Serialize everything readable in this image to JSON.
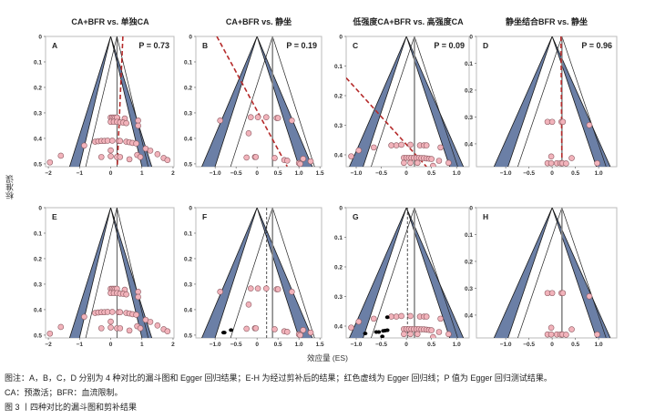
{
  "y_axis_label": "标准误",
  "x_axis_label": "效应量 (ES)",
  "caption": {
    "note_line1": "图注：A，B，C，D 分别为 4 种对比的漏斗图和 Egger 回归结果；E-H 为经过剪补后的结果；红色虚线为 Egger 回归线；P 值为 Egger 回归测试结果。",
    "note_line2": "CA：预激活；BFR：血流限制。",
    "figure_title": "图 3 丨四种对比的漏斗图和剪补结果"
  },
  "colors": {
    "funnel_fill": "#6b7fa6",
    "point_fill": "#f2b3bb",
    "point_stroke": "#8c5b62",
    "egger": "#b52a2a",
    "imputed": "#000000"
  },
  "chart_data": [
    {
      "type": "scatter",
      "panel": "A",
      "title": "CA+BFR vs. 单独CA",
      "p_text": "P = 0.73",
      "pooled": 0.2,
      "egger": [
        [
          0.39,
          0
        ],
        [
          0.21,
          0.51
        ]
      ],
      "xlim": [
        -2.09,
        2.03
      ],
      "ylim": [
        0,
        0.511
      ],
      "xticks": [
        -2,
        -1,
        0,
        1,
        2
      ],
      "xtick_labels": [
        "−2",
        "−1",
        "0",
        "1",
        "2"
      ],
      "yticks": [
        0,
        0.1,
        0.2,
        0.3,
        0.4,
        0.5
      ],
      "ytick_labels": [
        "0",
        "0.1",
        "0.2",
        "0.3",
        "0.4",
        "0.5"
      ],
      "points": [
        [
          0,
          0.318
        ],
        [
          0.05,
          0.318
        ],
        [
          0.1,
          0.318
        ],
        [
          0.15,
          0.318
        ],
        [
          0.2,
          0.318
        ],
        [
          0.45,
          0.322
        ],
        [
          0.88,
          0.33
        ],
        [
          0,
          0.335
        ],
        [
          0.1,
          0.335
        ],
        [
          0.2,
          0.335
        ],
        [
          0.3,
          0.337
        ],
        [
          0.4,
          0.338
        ],
        [
          0.5,
          0.34
        ],
        [
          0.88,
          0.35
        ],
        [
          -0.5,
          0.413
        ],
        [
          -0.4,
          0.411
        ],
        [
          -0.3,
          0.41
        ],
        [
          -0.2,
          0.41
        ],
        [
          -0.1,
          0.409
        ],
        [
          0.05,
          0.409
        ],
        [
          0.25,
          0.41
        ],
        [
          0.3,
          0.41
        ],
        [
          0.5,
          0.413
        ],
        [
          0.6,
          0.415
        ],
        [
          0.7,
          0.418
        ],
        [
          0.82,
          0.42
        ],
        [
          -0.85,
          0.428
        ],
        [
          1.12,
          0.44
        ],
        [
          1.27,
          0.448
        ],
        [
          1.5,
          0.462
        ],
        [
          0.85,
          0.465
        ],
        [
          0.95,
          0.473
        ],
        [
          1.7,
          0.477
        ],
        [
          -0.3,
          0.473
        ],
        [
          0.0,
          0.47
        ],
        [
          0.2,
          0.473
        ],
        [
          0.3,
          0.473
        ],
        [
          0.6,
          0.482
        ],
        [
          1.82,
          0.485
        ],
        [
          -1.6,
          0.468
        ],
        [
          -1.95,
          0.494
        ],
        [
          0.0,
          0.447
        ]
      ],
      "imputed": []
    },
    {
      "type": "scatter",
      "panel": "B",
      "title": "CA+BFR vs. 静坐",
      "p_text": "P = 0.19",
      "pooled": 0.37,
      "egger": [
        [
          -0.96,
          0
        ],
        [
          0.72,
          0.51
        ]
      ],
      "xlim": [
        -1.46,
        1.54
      ],
      "ylim": [
        0,
        0.511
      ],
      "xticks": [
        -1,
        -0.5,
        0,
        0.5,
        1,
        1.5
      ],
      "xtick_labels": [
        "−1.0",
        "−0.5",
        "0",
        "0.5",
        "1.0",
        "1.5"
      ],
      "yticks": [
        0,
        0.1,
        0.2,
        0.3,
        0.4,
        0.5
      ],
      "ytick_labels": [
        "0",
        "0.1",
        "0.2",
        "0.3",
        "0.4",
        "0.5"
      ],
      "points": [
        [
          -0.88,
          0.33
        ],
        [
          -0.15,
          0.317
        ],
        [
          0.02,
          0.317
        ],
        [
          0.22,
          0.317
        ],
        [
          0.47,
          0.32
        ],
        [
          0.5,
          0.32
        ],
        [
          0.83,
          0.33
        ],
        [
          -0.2,
          0.38
        ],
        [
          -0.25,
          0.475
        ],
        [
          -0.05,
          0.473
        ],
        [
          -0.03,
          0.473
        ],
        [
          0.42,
          0.477
        ],
        [
          0.65,
          0.485
        ],
        [
          0.72,
          0.487
        ],
        [
          1.0,
          0.497
        ],
        [
          1.03,
          0.5
        ],
        [
          1.1,
          0.48
        ],
        [
          1.28,
          0.49
        ]
      ],
      "imputed": []
    },
    {
      "type": "scatter",
      "panel": "C",
      "title": "低强度CA+BFR vs. 高强度CA",
      "p_text": "P = 0.09",
      "pooled": 0.16,
      "egger": [
        [
          -1.2,
          0.14
        ],
        [
          0.4,
          0.44
        ]
      ],
      "xlim": [
        -1.2,
        1.25
      ],
      "ylim": [
        0,
        0.44
      ],
      "xticks": [
        -1,
        -0.5,
        0,
        0.5,
        1
      ],
      "xtick_labels": [
        "−1.0",
        "−0.5",
        "0",
        "0.5",
        "1.0"
      ],
      "yticks": [
        0,
        0.1,
        0.2,
        0.3,
        0.4
      ],
      "ytick_labels": [
        "0",
        "0.1",
        "0.2",
        "0.3",
        "0.4"
      ],
      "points": [
        [
          -0.3,
          0.368
        ],
        [
          -0.2,
          0.368
        ],
        [
          -0.1,
          0.366
        ],
        [
          0.08,
          0.366
        ],
        [
          0.27,
          0.368
        ],
        [
          0.35,
          0.368
        ],
        [
          0.4,
          0.368
        ],
        [
          0.68,
          0.375
        ],
        [
          -0.65,
          0.375
        ],
        [
          -0.95,
          0.385
        ],
        [
          -1.1,
          0.405
        ],
        [
          -0.05,
          0.41
        ],
        [
          0,
          0.41
        ],
        [
          0.05,
          0.41
        ],
        [
          0.1,
          0.41
        ],
        [
          0.15,
          0.41
        ],
        [
          0.2,
          0.41
        ],
        [
          0.25,
          0.41
        ],
        [
          0.3,
          0.411
        ],
        [
          0.35,
          0.411
        ],
        [
          0.4,
          0.412
        ],
        [
          0.45,
          0.413
        ],
        [
          0.5,
          0.414
        ],
        [
          0.65,
          0.42
        ],
        [
          0.84,
          0.427
        ],
        [
          -0.05,
          0.427
        ],
        [
          0.08,
          0.427
        ],
        [
          0.22,
          0.427
        ],
        [
          0.53,
          0.437
        ]
      ],
      "imputed": []
    },
    {
      "type": "scatter",
      "panel": "D",
      "title": "静坐结合BFR vs. 静坐",
      "p_text": "P = 0.96",
      "pooled": 0.21,
      "egger": [
        [
          0.19,
          0
        ],
        [
          0.21,
          0.485
        ]
      ],
      "xlim": [
        -1.63,
        1.39
      ],
      "ylim": [
        0,
        0.485
      ],
      "xticks": [
        -1,
        -0.5,
        0,
        0.5,
        1
      ],
      "xtick_labels": [
        "−1.0",
        "−0.5",
        "0",
        "0.5",
        "1.0"
      ],
      "yticks": [
        0,
        0.1,
        0.2,
        0.3,
        0.4
      ],
      "ytick_labels": [
        "0",
        "0.1",
        "0.2",
        "0.3",
        "0.4"
      ],
      "points": [
        [
          -0.1,
          0.318
        ],
        [
          0,
          0.318
        ],
        [
          0.2,
          0.318
        ],
        [
          0.23,
          0.318
        ],
        [
          0.8,
          0.33
        ],
        [
          -0.02,
          0.447
        ],
        [
          0.42,
          0.453
        ],
        [
          -0.1,
          0.472
        ],
        [
          -0.02,
          0.472
        ],
        [
          0.1,
          0.472
        ],
        [
          0.18,
          0.472
        ],
        [
          0.22,
          0.472
        ],
        [
          0.3,
          0.473
        ],
        [
          0.97,
          0.472
        ]
      ],
      "imputed": []
    },
    {
      "type": "scatter",
      "panel": "E",
      "pooled": 0.2,
      "xlim": [
        -2.09,
        2.03
      ],
      "ylim": [
        0,
        0.511
      ],
      "xticks": [
        -2,
        -1,
        0,
        1,
        2
      ],
      "xtick_labels": [
        "−2",
        "−1",
        "0",
        "1",
        "2"
      ],
      "yticks": [
        0,
        0.1,
        0.2,
        0.3,
        0.4,
        0.5
      ],
      "ytick_labels": [
        "0",
        "0.1",
        "0.2",
        "0.3",
        "0.4",
        "0.5"
      ],
      "points": [
        [
          0,
          0.318
        ],
        [
          0.05,
          0.318
        ],
        [
          0.1,
          0.318
        ],
        [
          0.15,
          0.318
        ],
        [
          0.2,
          0.318
        ],
        [
          0.45,
          0.322
        ],
        [
          0.88,
          0.33
        ],
        [
          0,
          0.335
        ],
        [
          0.1,
          0.335
        ],
        [
          0.2,
          0.335
        ],
        [
          0.3,
          0.337
        ],
        [
          0.4,
          0.338
        ],
        [
          0.5,
          0.34
        ],
        [
          0.88,
          0.35
        ],
        [
          -0.5,
          0.413
        ],
        [
          -0.4,
          0.411
        ],
        [
          -0.3,
          0.41
        ],
        [
          -0.2,
          0.41
        ],
        [
          -0.1,
          0.409
        ],
        [
          0.05,
          0.409
        ],
        [
          0.25,
          0.41
        ],
        [
          0.3,
          0.41
        ],
        [
          0.5,
          0.413
        ],
        [
          0.6,
          0.415
        ],
        [
          0.7,
          0.418
        ],
        [
          0.82,
          0.42
        ],
        [
          -0.85,
          0.428
        ],
        [
          1.12,
          0.44
        ],
        [
          1.27,
          0.448
        ],
        [
          1.5,
          0.462
        ],
        [
          0.85,
          0.465
        ],
        [
          0.95,
          0.473
        ],
        [
          1.7,
          0.477
        ],
        [
          -0.3,
          0.473
        ],
        [
          0.0,
          0.47
        ],
        [
          0.2,
          0.473
        ],
        [
          0.3,
          0.473
        ],
        [
          0.6,
          0.482
        ],
        [
          1.82,
          0.485
        ],
        [
          -1.6,
          0.468
        ],
        [
          -1.95,
          0.494
        ],
        [
          0.0,
          0.447
        ]
      ],
      "imputed": []
    },
    {
      "type": "scatter",
      "panel": "F",
      "pooled": 0.37,
      "adjusted": 0.23,
      "xlim": [
        -1.46,
        1.54
      ],
      "ylim": [
        0,
        0.511
      ],
      "xticks": [
        -1,
        -0.5,
        0,
        0.5,
        1,
        1.5
      ],
      "xtick_labels": [
        "−1.0",
        "−0.5",
        "0",
        "0.5",
        "1.0",
        "1.5"
      ],
      "yticks": [
        0,
        0.1,
        0.2,
        0.3,
        0.4,
        0.5
      ],
      "ytick_labels": [
        "0",
        "0.1",
        "0.2",
        "0.3",
        "0.4",
        "0.5"
      ],
      "points": [
        [
          -0.88,
          0.33
        ],
        [
          -0.15,
          0.317
        ],
        [
          0.02,
          0.317
        ],
        [
          0.22,
          0.317
        ],
        [
          0.47,
          0.32
        ],
        [
          0.5,
          0.32
        ],
        [
          0.83,
          0.33
        ],
        [
          -0.2,
          0.38
        ],
        [
          -0.25,
          0.475
        ],
        [
          -0.05,
          0.473
        ],
        [
          -0.03,
          0.473
        ],
        [
          0.42,
          0.477
        ],
        [
          0.65,
          0.485
        ],
        [
          0.72,
          0.487
        ],
        [
          1.0,
          0.497
        ],
        [
          1.03,
          0.5
        ],
        [
          1.1,
          0.48
        ],
        [
          1.28,
          0.49
        ]
      ],
      "imputed": [
        [
          -0.8,
          0.49
        ],
        [
          -0.78,
          0.49
        ],
        [
          -0.62,
          0.48
        ]
      ]
    },
    {
      "type": "scatter",
      "panel": "G",
      "pooled": 0.16,
      "adjusted": 0.02,
      "xlim": [
        -1.2,
        1.25
      ],
      "ylim": [
        0,
        0.44
      ],
      "xticks": [
        -1,
        -0.5,
        0,
        0.5,
        1
      ],
      "xtick_labels": [
        "−1.0",
        "−0.5",
        "0",
        "0.5",
        "1.0"
      ],
      "yticks": [
        0,
        0.1,
        0.2,
        0.3,
        0.4
      ],
      "ytick_labels": [
        "0",
        "0.1",
        "0.2",
        "0.3",
        "0.4"
      ],
      "points": [
        [
          -0.3,
          0.368
        ],
        [
          -0.2,
          0.368
        ],
        [
          -0.1,
          0.366
        ],
        [
          0.08,
          0.366
        ],
        [
          0.27,
          0.368
        ],
        [
          0.35,
          0.368
        ],
        [
          0.4,
          0.368
        ],
        [
          0.68,
          0.375
        ],
        [
          -0.65,
          0.375
        ],
        [
          -0.95,
          0.385
        ],
        [
          -1.1,
          0.405
        ],
        [
          -0.05,
          0.41
        ],
        [
          0,
          0.41
        ],
        [
          0.05,
          0.41
        ],
        [
          0.1,
          0.41
        ],
        [
          0.15,
          0.41
        ],
        [
          0.2,
          0.41
        ],
        [
          0.25,
          0.41
        ],
        [
          0.3,
          0.411
        ],
        [
          0.35,
          0.411
        ],
        [
          0.4,
          0.412
        ],
        [
          0.45,
          0.413
        ],
        [
          0.5,
          0.414
        ],
        [
          0.65,
          0.42
        ],
        [
          0.84,
          0.427
        ],
        [
          -0.05,
          0.427
        ],
        [
          0.08,
          0.427
        ],
        [
          0.22,
          0.427
        ],
        [
          0.53,
          0.437
        ]
      ],
      "imputed": [
        [
          -0.38,
          0.37
        ],
        [
          -0.82,
          0.425
        ],
        [
          -0.6,
          0.42
        ],
        [
          -0.55,
          0.42
        ],
        [
          -0.46,
          0.416
        ],
        [
          -0.42,
          0.415
        ],
        [
          -0.38,
          0.414
        ],
        [
          -0.48,
          0.435
        ]
      ]
    },
    {
      "type": "scatter",
      "panel": "H",
      "pooled": 0.21,
      "xlim": [
        -1.63,
        1.39
      ],
      "ylim": [
        0,
        0.485
      ],
      "xticks": [
        -1,
        -0.5,
        0,
        0.5,
        1
      ],
      "xtick_labels": [
        "−1.0",
        "−0.5",
        "0",
        "0.5",
        "1.0"
      ],
      "yticks": [
        0,
        0.1,
        0.2,
        0.3,
        0.4
      ],
      "ytick_labels": [
        "0",
        "0.1",
        "0.2",
        "0.3",
        "0.4"
      ],
      "points": [
        [
          -0.1,
          0.318
        ],
        [
          0,
          0.318
        ],
        [
          0.2,
          0.318
        ],
        [
          0.23,
          0.318
        ],
        [
          0.8,
          0.33
        ],
        [
          -0.02,
          0.447
        ],
        [
          0.42,
          0.453
        ],
        [
          -0.1,
          0.472
        ],
        [
          -0.02,
          0.472
        ],
        [
          0.1,
          0.472
        ],
        [
          0.18,
          0.472
        ],
        [
          0.22,
          0.472
        ],
        [
          0.3,
          0.473
        ],
        [
          0.97,
          0.472
        ]
      ],
      "imputed": []
    }
  ]
}
